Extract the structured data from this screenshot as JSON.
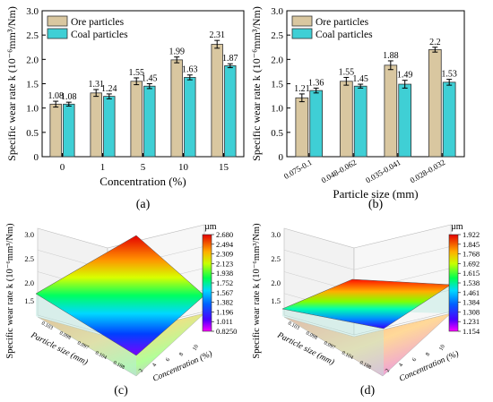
{
  "chart_data": [
    {
      "type": "bar",
      "panel_label": "(a)",
      "xlabel": "Concentration (%)",
      "ylabel": "Specific wear rate k (10⁻⁶mm³/Nm)",
      "categories": [
        "0",
        "1",
        "5",
        "10",
        "15"
      ],
      "series": [
        {
          "name": "Ore particles",
          "values": [
            1.08,
            1.31,
            1.55,
            1.99,
            2.31
          ],
          "labels": [
            "1.08",
            "1.31",
            "1.55",
            "1.99",
            "2.31"
          ],
          "color": "#d9c7a0"
        },
        {
          "name": "Coal particles",
          "values": [
            1.08,
            1.24,
            1.45,
            1.63,
            1.87
          ],
          "labels": [
            "1.08",
            "1.24",
            "1.45",
            "1.63",
            "1.87"
          ],
          "color": "#3fcfd5"
        }
      ],
      "errors": [
        [
          0.06,
          0.07,
          0.07,
          0.06,
          0.08
        ],
        [
          0.04,
          0.05,
          0.05,
          0.05,
          0.04
        ]
      ],
      "ylim": [
        0,
        3.0
      ],
      "yticks": [
        "0",
        "0.5",
        "1.0",
        "1.5",
        "2.0",
        "2.5",
        "3.0"
      ],
      "legend": "top-left"
    },
    {
      "type": "bar",
      "panel_label": "(b)",
      "xlabel": "Particle size (mm)",
      "ylabel": "Specific wear rate k (10⁻⁶mm³/Nm)",
      "categories": [
        "0.075-0.1",
        "0.048-0.062",
        "0.035-0.041",
        "0.028-0.032"
      ],
      "series": [
        {
          "name": "Ore particles",
          "values": [
            1.21,
            1.55,
            1.88,
            2.2
          ],
          "labels": [
            "1.21",
            "1.55",
            "1.88",
            "2.2"
          ],
          "color": "#d9c7a0"
        },
        {
          "name": "Coal particles",
          "values": [
            1.36,
            1.45,
            1.49,
            1.53
          ],
          "labels": [
            "1.36",
            "1.45",
            "1.49",
            "1.53"
          ],
          "color": "#3fcfd5"
        }
      ],
      "errors": [
        [
          0.08,
          0.08,
          0.09,
          0.05
        ],
        [
          0.05,
          0.04,
          0.08,
          0.06
        ]
      ],
      "ylim": [
        0,
        3.0
      ],
      "yticks": [
        "0",
        "0.5",
        "1.0",
        "1.5",
        "2.0",
        "2.5",
        "3.0"
      ],
      "legend": "top-left"
    },
    {
      "type": "surface",
      "panel_label": "(c)",
      "zlabel": "Specific wear rate k (10⁻⁶mm³/Nm)",
      "xlabel": "Particle size (mm)",
      "ylabel": "Concentration (%)",
      "zticks": [
        "1.5",
        "2.0",
        "2.5",
        "3.0"
      ],
      "xticks": [
        "0.103",
        "0.098",
        "0.097",
        "0.104",
        "0.188"
      ],
      "yticks": [
        "2",
        "4",
        "6",
        "8",
        "10"
      ],
      "corner_values": {
        "low": 0.825,
        "high": 2.68
      },
      "colorbar": {
        "unit": "µm",
        "ticks": [
          "2.680",
          "2.494",
          "2.309",
          "2.123",
          "1.938",
          "1.752",
          "1.567",
          "1.382",
          "1.196",
          "1.011",
          "0.8250"
        ]
      }
    },
    {
      "type": "surface",
      "panel_label": "(d)",
      "zlabel": "Specific wear rate k (10⁻⁶mm³/Nm)",
      "xlabel": "Particle size (mm)",
      "ylabel": "Concentration (%)",
      "zticks": [
        "1.5",
        "2.0",
        "2.5",
        "3.0"
      ],
      "xticks": [
        "0.103",
        "0.098",
        "0.097",
        "0.104",
        "0.188"
      ],
      "yticks": [
        "2",
        "4",
        "6",
        "8",
        "10"
      ],
      "corner_values": {
        "low": 1.154,
        "high": 1.922
      },
      "colorbar": {
        "unit": "µm",
        "ticks": [
          "1.922",
          "1.845",
          "1.768",
          "1.692",
          "1.615",
          "1.538",
          "1.461",
          "1.384",
          "1.308",
          "1.231",
          "1.154"
        ]
      }
    }
  ]
}
